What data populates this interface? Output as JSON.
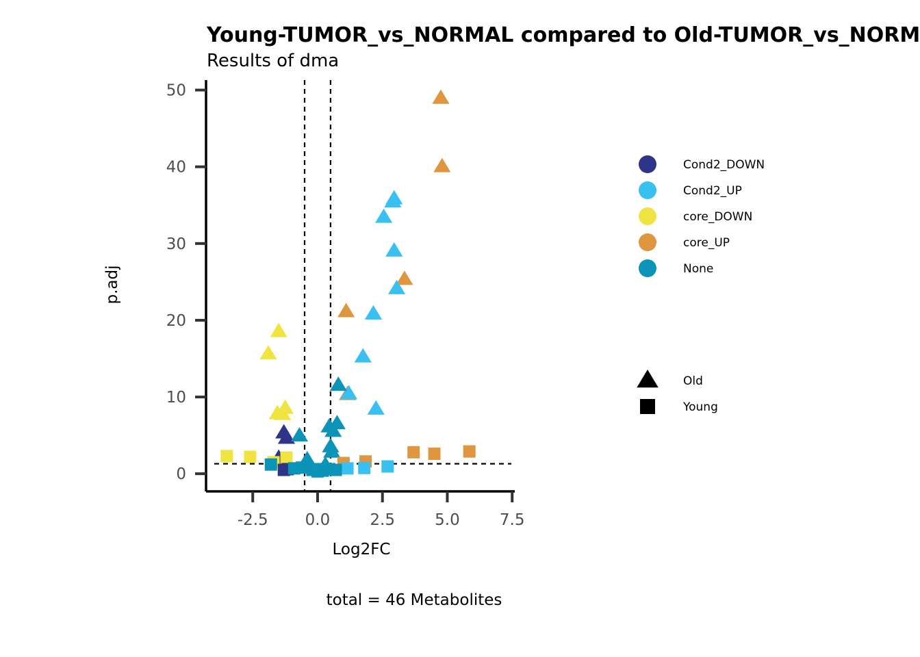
{
  "chart_data": {
    "type": "scatter",
    "title": "Young-TUMOR_vs_NORMAL compared to Old-TUMOR_vs_NORMAL",
    "subtitle": "Results of dma",
    "xlabel": "Log2FC",
    "ylabel": "p.adj",
    "caption": "total = 46 Metabolites",
    "xlim": [
      -4.3,
      7.6
    ],
    "ylim": [
      -2.3,
      51.3
    ],
    "xticks": [
      -2.5,
      0.0,
      2.5,
      5.0,
      7.5
    ],
    "xtick_labels": [
      "-2.5",
      "0.0",
      "2.5",
      "5.0",
      "7.5"
    ],
    "yticks": [
      0,
      10,
      20,
      30,
      40,
      50
    ],
    "ytick_labels": [
      "0",
      "10",
      "20",
      "30",
      "40",
      "50"
    ],
    "vlines": [
      -0.5,
      0.5
    ],
    "hline": 1.3,
    "grid": false,
    "legend_position": "right",
    "colors": {
      "Cond2_DOWN": "#2e3488",
      "Cond2_UP": "#38c0f0",
      "core_DOWN": "#f0e442",
      "core_UP": "#e0963f",
      "None": "#0b93b8"
    },
    "legend_color": [
      {
        "label": "Cond2_DOWN",
        "color": "#2e3488"
      },
      {
        "label": "Cond2_UP",
        "color": "#38c0f0"
      },
      {
        "label": "core_DOWN",
        "color": "#f0e442"
      },
      {
        "label": "core_UP",
        "color": "#e0963f"
      },
      {
        "label": "None",
        "color": "#0b93b8"
      }
    ],
    "legend_shape": [
      {
        "label": "Old",
        "shape": "triangle"
      },
      {
        "label": "Young",
        "shape": "square"
      }
    ],
    "series": [
      {
        "name": "Old",
        "shape": "triangle",
        "points": [
          {
            "x": 4.75,
            "y": 49.0,
            "group": "core_UP"
          },
          {
            "x": 4.8,
            "y": 40.1,
            "group": "core_UP"
          },
          {
            "x": 3.35,
            "y": 25.4,
            "group": "core_UP"
          },
          {
            "x": 1.1,
            "y": 21.2,
            "group": "core_UP"
          },
          {
            "x": 1.15,
            "y": 10.4,
            "group": "core_UP"
          },
          {
            "x": 2.95,
            "y": 35.9,
            "group": "Cond2_UP"
          },
          {
            "x": 2.9,
            "y": 35.5,
            "group": "Cond2_UP"
          },
          {
            "x": 2.55,
            "y": 33.5,
            "group": "Cond2_UP"
          },
          {
            "x": 2.95,
            "y": 29.1,
            "group": "Cond2_UP"
          },
          {
            "x": 3.05,
            "y": 24.2,
            "group": "Cond2_UP"
          },
          {
            "x": 2.15,
            "y": 20.9,
            "group": "Cond2_UP"
          },
          {
            "x": 1.75,
            "y": 15.3,
            "group": "Cond2_UP"
          },
          {
            "x": 1.2,
            "y": 10.5,
            "group": "Cond2_UP"
          },
          {
            "x": 2.25,
            "y": 8.5,
            "group": "Cond2_UP"
          },
          {
            "x": -1.5,
            "y": 18.6,
            "group": "core_DOWN"
          },
          {
            "x": -1.9,
            "y": 15.7,
            "group": "core_DOWN"
          },
          {
            "x": -1.25,
            "y": 8.6,
            "group": "core_DOWN"
          },
          {
            "x": -1.55,
            "y": 7.9,
            "group": "core_DOWN"
          },
          {
            "x": -1.35,
            "y": 7.8,
            "group": "core_DOWN"
          },
          {
            "x": -1.3,
            "y": 5.4,
            "group": "Cond2_DOWN"
          },
          {
            "x": -1.2,
            "y": 4.7,
            "group": "Cond2_DOWN"
          },
          {
            "x": -1.5,
            "y": 2.1,
            "group": "Cond2_DOWN"
          },
          {
            "x": 0.8,
            "y": 11.6,
            "group": "None"
          },
          {
            "x": 0.75,
            "y": 6.6,
            "group": "None"
          },
          {
            "x": 0.45,
            "y": 6.2,
            "group": "None"
          },
          {
            "x": 0.6,
            "y": 5.6,
            "group": "None"
          },
          {
            "x": -0.7,
            "y": 5.0,
            "group": "None"
          },
          {
            "x": 0.5,
            "y": 3.6,
            "group": "None"
          },
          {
            "x": 0.55,
            "y": 2.9,
            "group": "None"
          },
          {
            "x": -0.4,
            "y": 1.9,
            "group": "None"
          },
          {
            "x": 0.3,
            "y": 1.2,
            "group": "None"
          }
        ]
      },
      {
        "name": "Young",
        "shape": "square",
        "points": [
          {
            "x": 5.85,
            "y": 2.9,
            "group": "core_UP"
          },
          {
            "x": 3.7,
            "y": 2.8,
            "group": "core_UP"
          },
          {
            "x": 4.5,
            "y": 2.6,
            "group": "core_UP"
          },
          {
            "x": 1.85,
            "y": 1.6,
            "group": "core_UP"
          },
          {
            "x": 1.0,
            "y": 1.4,
            "group": "core_UP"
          },
          {
            "x": 2.7,
            "y": 0.95,
            "group": "Cond2_UP"
          },
          {
            "x": 1.8,
            "y": 0.75,
            "group": "Cond2_UP"
          },
          {
            "x": 1.15,
            "y": 0.7,
            "group": "Cond2_UP"
          },
          {
            "x": -3.5,
            "y": 2.3,
            "group": "core_DOWN"
          },
          {
            "x": -2.6,
            "y": 2.2,
            "group": "core_DOWN"
          },
          {
            "x": -1.2,
            "y": 2.1,
            "group": "core_DOWN"
          },
          {
            "x": -1.7,
            "y": 1.5,
            "group": "core_DOWN"
          },
          {
            "x": -1.3,
            "y": 0.5,
            "group": "Cond2_DOWN"
          },
          {
            "x": -1.15,
            "y": 0.6,
            "group": "Cond2_DOWN"
          },
          {
            "x": -1.8,
            "y": 1.2,
            "group": "None"
          },
          {
            "x": -0.9,
            "y": 0.7,
            "group": "None"
          },
          {
            "x": -0.6,
            "y": 0.8,
            "group": "None"
          },
          {
            "x": -0.2,
            "y": 0.5,
            "group": "None"
          },
          {
            "x": 0.0,
            "y": 0.3,
            "group": "None"
          },
          {
            "x": 0.2,
            "y": 0.4,
            "group": "None"
          },
          {
            "x": 0.45,
            "y": 0.6,
            "group": "None"
          },
          {
            "x": 0.7,
            "y": 0.5,
            "group": "None"
          },
          {
            "x": -0.1,
            "y": 0.6,
            "group": "None"
          }
        ]
      }
    ]
  }
}
